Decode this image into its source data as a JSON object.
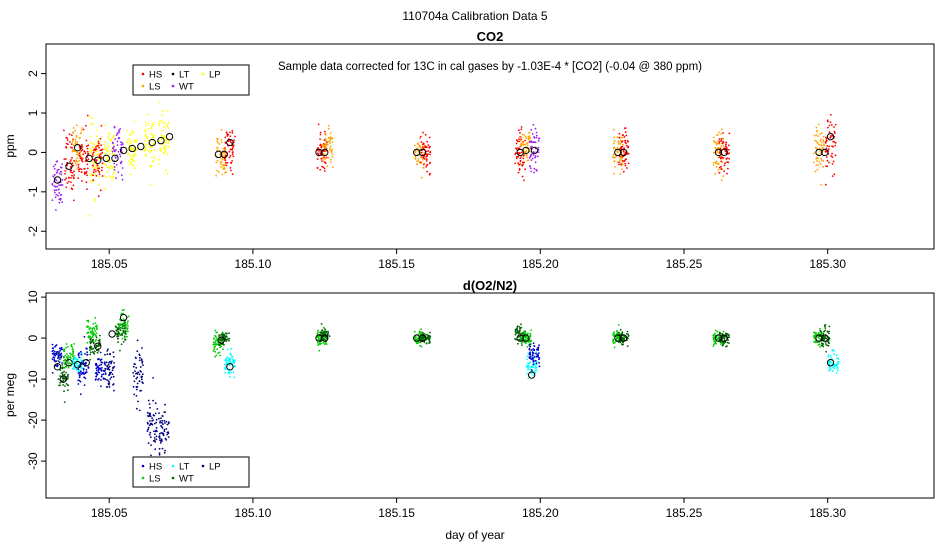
{
  "suptitle": "110704a   Calibration Data 5",
  "xlabel": "day of year",
  "legend_items": [
    "HS",
    "LS",
    "LT",
    "WT",
    "LP"
  ],
  "colors": {
    "HS": "#ff0000",
    "LS": "#ffa500",
    "LT": "#000000",
    "WT": "#a020f0",
    "LP": "#ffff00",
    "HS_o2": "#0000cd",
    "LS_o2": "#00cc00",
    "LT_o2": "#00ffff",
    "WT_o2": "#006400",
    "LP_o2": "#000080"
  },
  "chart_data": [
    {
      "type": "scatter",
      "title": "CO2",
      "annotation": "Sample data corrected for 13C in cal gases by -1.03E-4 * [CO2] (-0.04 @ 380 ppm)",
      "xlabel": "",
      "ylabel": "ppm",
      "xlim": [
        185.028,
        185.337
      ],
      "ylim": [
        -2.45,
        2.75
      ],
      "xticks": [
        "185.05",
        "185.10",
        "185.15",
        "185.20",
        "185.25",
        "185.30"
      ],
      "xtick_values": [
        185.05,
        185.1,
        185.15,
        185.2,
        185.25,
        185.3
      ],
      "yticks": [
        "-2",
        "-1",
        "0",
        "1",
        "2"
      ],
      "ytick_values": [
        -2,
        -1,
        0,
        1,
        2
      ],
      "legend_position": "top-left",
      "scatter_clusters": [
        {
          "series": "WT",
          "x": 185.032,
          "y": -0.7,
          "spread": 0.7
        },
        {
          "series": "HS",
          "x": 185.036,
          "y": -0.3,
          "spread": 0.9
        },
        {
          "series": "LS",
          "x": 185.039,
          "y": 0.1,
          "spread": 0.6
        },
        {
          "series": "HS",
          "x": 185.041,
          "y": -0.1,
          "spread": 0.8
        },
        {
          "series": "LP",
          "x": 185.045,
          "y": -0.2,
          "spread": 0.9
        },
        {
          "series": "HS",
          "x": 185.046,
          "y": -0.2,
          "spread": 0.7
        },
        {
          "series": "LP",
          "x": 185.05,
          "y": -0.2,
          "spread": 0.9
        },
        {
          "series": "WT",
          "x": 185.053,
          "y": 0.0,
          "spread": 0.6
        },
        {
          "series": "LP",
          "x": 185.058,
          "y": 0.1,
          "spread": 0.8
        },
        {
          "series": "LP",
          "x": 185.064,
          "y": 0.2,
          "spread": 0.8
        },
        {
          "series": "LP",
          "x": 185.069,
          "y": 0.3,
          "spread": 0.7
        },
        {
          "series": "LS",
          "x": 185.089,
          "y": -0.1,
          "spread": 0.6
        },
        {
          "series": "HS",
          "x": 185.092,
          "y": 0.1,
          "spread": 0.6
        },
        {
          "series": "HS",
          "x": 185.124,
          "y": 0.0,
          "spread": 0.5
        },
        {
          "series": "LS",
          "x": 185.126,
          "y": 0.1,
          "spread": 0.5
        },
        {
          "series": "LS",
          "x": 185.158,
          "y": 0.0,
          "spread": 0.5
        },
        {
          "series": "HS",
          "x": 185.16,
          "y": 0.0,
          "spread": 0.6
        },
        {
          "series": "HS",
          "x": 185.193,
          "y": 0.0,
          "spread": 0.6
        },
        {
          "series": "LS",
          "x": 185.195,
          "y": 0.1,
          "spread": 0.5
        },
        {
          "series": "WT",
          "x": 185.198,
          "y": 0.0,
          "spread": 0.7
        },
        {
          "series": "LS",
          "x": 185.227,
          "y": 0.0,
          "spread": 0.6
        },
        {
          "series": "HS",
          "x": 185.229,
          "y": 0.0,
          "spread": 0.6
        },
        {
          "series": "LS",
          "x": 185.262,
          "y": 0.0,
          "spread": 0.6
        },
        {
          "series": "HS",
          "x": 185.264,
          "y": 0.0,
          "spread": 0.5
        },
        {
          "series": "LS",
          "x": 185.297,
          "y": 0.0,
          "spread": 0.7
        },
        {
          "series": "HS",
          "x": 185.301,
          "y": 0.2,
          "spread": 0.8
        }
      ],
      "means": {
        "x": [
          185.032,
          185.036,
          185.039,
          185.043,
          185.046,
          185.049,
          185.052,
          185.055,
          185.058,
          185.061,
          185.065,
          185.068,
          185.071,
          185.088,
          185.09,
          185.092,
          185.123,
          185.125,
          185.157,
          185.159,
          185.193,
          185.195,
          185.198,
          185.227,
          185.229,
          185.262,
          185.264,
          185.297,
          185.299,
          185.301
        ],
        "y": [
          -0.7,
          -0.35,
          0.12,
          -0.15,
          -0.2,
          -0.15,
          -0.15,
          0.05,
          0.1,
          0.15,
          0.25,
          0.3,
          0.4,
          -0.05,
          -0.05,
          0.25,
          0.0,
          0.0,
          0.0,
          0.0,
          0.0,
          0.05,
          0.05,
          0.0,
          0.0,
          0.0,
          0.0,
          0.0,
          0.0,
          0.4
        ]
      }
    },
    {
      "type": "scatter",
      "title": "d(O2/N2)",
      "xlabel": "day of year",
      "ylabel": "per meg",
      "xlim": [
        185.028,
        185.337
      ],
      "ylim": [
        -39,
        11
      ],
      "xticks": [
        "185.05",
        "185.10",
        "185.15",
        "185.20",
        "185.25",
        "185.30"
      ],
      "xtick_values": [
        185.05,
        185.1,
        185.15,
        185.2,
        185.25,
        185.3
      ],
      "yticks": [
        "-30",
        "-20",
        "-10",
        "0",
        "10"
      ],
      "ytick_values": [
        -30,
        -20,
        -10,
        0,
        10
      ],
      "legend_position": "bottom-left",
      "scatter_clusters": [
        {
          "series": "HS",
          "x": 185.032,
          "y": -4,
          "spread": 3
        },
        {
          "series": "WT",
          "x": 185.034,
          "y": -9,
          "spread": 5
        },
        {
          "series": "LS",
          "x": 185.036,
          "y": -5,
          "spread": 4
        },
        {
          "series": "LT",
          "x": 185.039,
          "y": -6,
          "spread": 2
        },
        {
          "series": "HS",
          "x": 185.041,
          "y": -7,
          "spread": 6
        },
        {
          "series": "LS",
          "x": 185.044,
          "y": 1,
          "spread": 4
        },
        {
          "series": "WT",
          "x": 185.045,
          "y": -2,
          "spread": 3
        },
        {
          "series": "HS",
          "x": 185.047,
          "y": -8,
          "spread": 4
        },
        {
          "series": "LP",
          "x": 185.05,
          "y": -8,
          "spread": 6
        },
        {
          "series": "LS",
          "x": 185.055,
          "y": 3,
          "spread": 4
        },
        {
          "series": "WT",
          "x": 185.054,
          "y": 1,
          "spread": 3
        },
        {
          "series": "LP",
          "x": 185.06,
          "y": -10,
          "spread": 8
        },
        {
          "series": "LP",
          "x": 185.065,
          "y": -21,
          "spread": 8
        },
        {
          "series": "LP",
          "x": 185.069,
          "y": -23,
          "spread": 6
        },
        {
          "series": "LS",
          "x": 185.088,
          "y": -1,
          "spread": 3
        },
        {
          "series": "WT",
          "x": 185.09,
          "y": 0,
          "spread": 2
        },
        {
          "series": "LT",
          "x": 185.092,
          "y": -6,
          "spread": 3
        },
        {
          "series": "LS",
          "x": 185.124,
          "y": 0,
          "spread": 2
        },
        {
          "series": "WT",
          "x": 185.125,
          "y": 1,
          "spread": 2
        },
        {
          "series": "LS",
          "x": 185.158,
          "y": 0,
          "spread": 2
        },
        {
          "series": "WT",
          "x": 185.16,
          "y": 0,
          "spread": 2
        },
        {
          "series": "WT",
          "x": 185.193,
          "y": 1,
          "spread": 2
        },
        {
          "series": "LS",
          "x": 185.195,
          "y": 0,
          "spread": 2
        },
        {
          "series": "LT",
          "x": 185.197,
          "y": -7,
          "spread": 3
        },
        {
          "series": "HS",
          "x": 185.198,
          "y": -4,
          "spread": 3
        },
        {
          "series": "LS",
          "x": 185.227,
          "y": 0,
          "spread": 2
        },
        {
          "series": "WT",
          "x": 185.229,
          "y": 0,
          "spread": 2
        },
        {
          "series": "LS",
          "x": 185.262,
          "y": 0,
          "spread": 2
        },
        {
          "series": "WT",
          "x": 185.264,
          "y": 0,
          "spread": 2
        },
        {
          "series": "LS",
          "x": 185.297,
          "y": 0,
          "spread": 2
        },
        {
          "series": "WT",
          "x": 185.299,
          "y": 0,
          "spread": 3
        },
        {
          "series": "LT",
          "x": 185.302,
          "y": -6,
          "spread": 3
        }
      ],
      "means": {
        "x": [
          185.032,
          185.034,
          185.036,
          185.039,
          185.042,
          185.046,
          185.051,
          185.055,
          185.089,
          185.092,
          185.123,
          185.125,
          185.157,
          185.159,
          185.193,
          185.195,
          185.197,
          185.227,
          185.229,
          185.262,
          185.264,
          185.297,
          185.299,
          185.301
        ],
        "y": [
          -7,
          -10,
          -6,
          -6.5,
          -6,
          -2,
          1,
          5,
          -0.5,
          -7,
          0,
          0,
          0,
          0,
          0,
          0,
          -9,
          0,
          0,
          0,
          0,
          0,
          0,
          -6
        ]
      }
    }
  ]
}
